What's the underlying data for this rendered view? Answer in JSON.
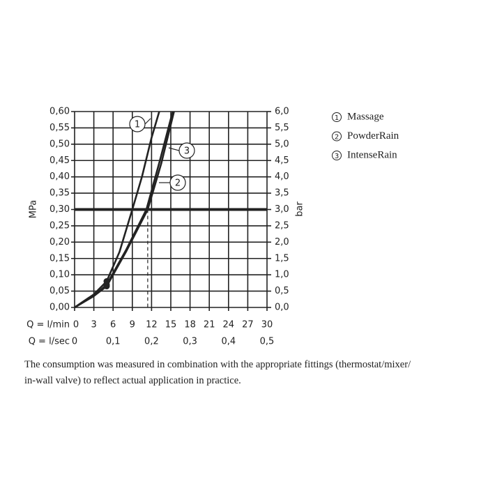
{
  "chart_data": {
    "type": "line",
    "y_label": "MPa",
    "y2_label": "bar",
    "x_label": "Q = l/min",
    "x2_label": "Q = l/sec",
    "xlim": [
      0,
      30
    ],
    "xticks": [
      0,
      3,
      6,
      9,
      12,
      15,
      18,
      21,
      24,
      27,
      30
    ],
    "x2lim": [
      0,
      0.5
    ],
    "x2ticks": [
      {
        "value": 0,
        "label": "0"
      },
      {
        "value": 0.1,
        "label": "0,1"
      },
      {
        "value": 0.2,
        "label": "0,2"
      },
      {
        "value": 0.3,
        "label": "0,3"
      },
      {
        "value": 0.4,
        "label": "0,4"
      },
      {
        "value": 0.5,
        "label": "0,5"
      }
    ],
    "ylim": [
      0,
      0.6
    ],
    "yticks": [
      {
        "value": 0,
        "label": "0,00"
      },
      {
        "value": 0.05,
        "label": "0,05"
      },
      {
        "value": 0.1,
        "label": "0,10"
      },
      {
        "value": 0.15,
        "label": "0,15"
      },
      {
        "value": 0.2,
        "label": "0,20"
      },
      {
        "value": 0.25,
        "label": "0,25"
      },
      {
        "value": 0.3,
        "label": "0,30"
      },
      {
        "value": 0.35,
        "label": "0,35"
      },
      {
        "value": 0.4,
        "label": "0,40"
      },
      {
        "value": 0.45,
        "label": "0,45"
      },
      {
        "value": 0.5,
        "label": "0,50"
      },
      {
        "value": 0.55,
        "label": "0,55"
      },
      {
        "value": 0.6,
        "label": "0,60"
      }
    ],
    "y2lim": [
      0,
      6
    ],
    "y2ticks": [
      {
        "value": 0,
        "label": "0,0"
      },
      {
        "value": 0.5,
        "label": "0,5"
      },
      {
        "value": 1,
        "label": "1,0"
      },
      {
        "value": 1.5,
        "label": "1,5"
      },
      {
        "value": 2,
        "label": "2,0"
      },
      {
        "value": 2.5,
        "label": "2,5"
      },
      {
        "value": 3,
        "label": "3,0"
      },
      {
        "value": 3.5,
        "label": "3,5"
      },
      {
        "value": 4,
        "label": "4,0"
      },
      {
        "value": 4.5,
        "label": "4,5"
      },
      {
        "value": 5,
        "label": "5,0"
      },
      {
        "value": 5.5,
        "label": "5,5"
      },
      {
        "value": 6,
        "label": "6,0"
      }
    ],
    "grid": true,
    "reference_pressure": 0.3,
    "reference_flows": [
      9,
      11.4
    ],
    "series": [
      {
        "name": "Massage",
        "marker": "1",
        "color": "#222",
        "x": [
          0,
          3,
          5,
          7,
          9,
          10.5,
          12,
          13.2
        ],
        "values": [
          0,
          0.04,
          0.08,
          0.17,
          0.3,
          0.4,
          0.52,
          0.6
        ]
      },
      {
        "name": "PowderRain",
        "marker": "2",
        "color": "#222",
        "x": [
          0,
          3,
          5,
          8,
          11.4,
          13.5,
          15.5
        ],
        "values": [
          0,
          0.035,
          0.065,
          0.17,
          0.3,
          0.44,
          0.6
        ]
      },
      {
        "name": "IntenseRain",
        "marker": "3",
        "color": "#222",
        "x": [
          0,
          3,
          5,
          8,
          11.2,
          13.3,
          15.3
        ],
        "values": [
          0,
          0.035,
          0.07,
          0.175,
          0.3,
          0.45,
          0.6
        ]
      }
    ],
    "caption": [
      "The consumption was measured in combination with the appropriate fittings (thermostat/mixer/",
      "in-wall valve) to reflect actual application in practice."
    ]
  }
}
